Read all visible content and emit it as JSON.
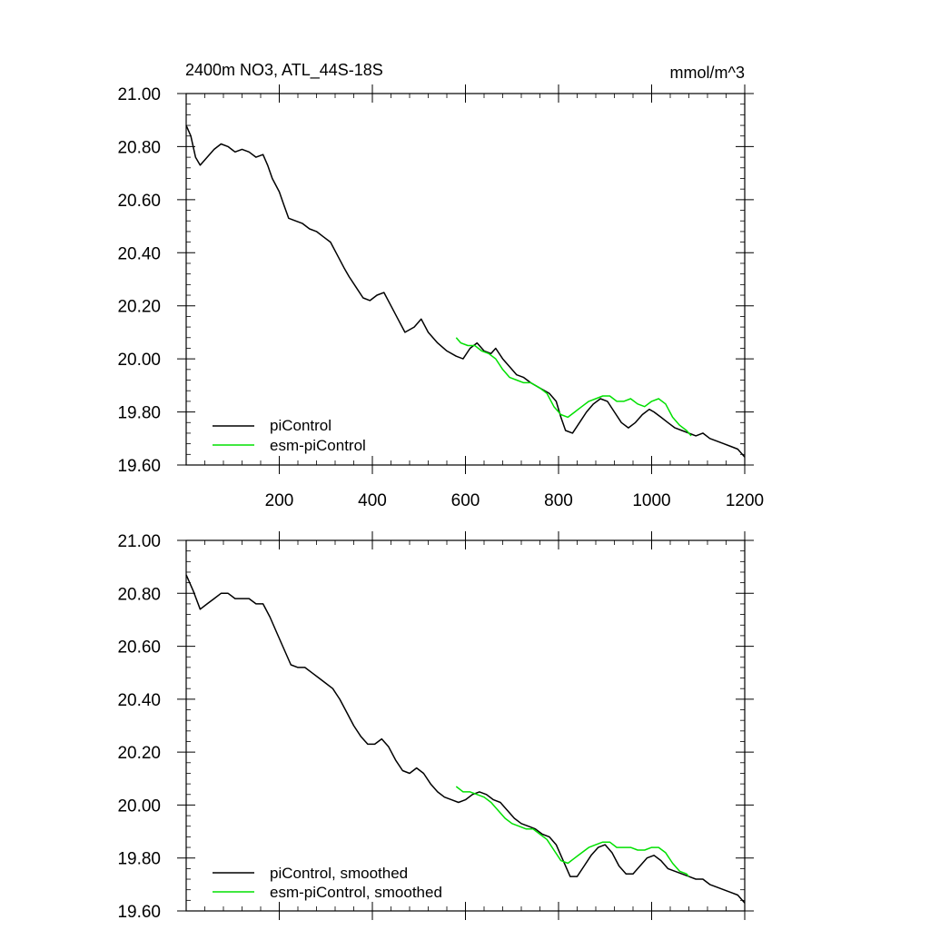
{
  "chart_data": [
    {
      "type": "line",
      "title": "2400m NO3, ATL_44S-18S",
      "units": "mmol/m^3",
      "xlim": [
        0,
        1200
      ],
      "ylim": [
        19.6,
        21.0
      ],
      "x_ticks": [
        200,
        400,
        600,
        800,
        1000,
        1200
      ],
      "x_tick_labels": [
        "200",
        "400",
        "600",
        "800",
        "1000",
        "1200"
      ],
      "y_ticks": [
        19.6,
        19.8,
        20.0,
        20.2,
        20.4,
        20.6,
        20.8,
        21.0
      ],
      "y_tick_labels": [
        "19.60",
        "19.80",
        "20.00",
        "20.20",
        "20.40",
        "20.60",
        "20.80",
        "21.00"
      ],
      "grid": false,
      "legend_position": "bottom-left",
      "series": [
        {
          "name": "piControl",
          "color": "#000000",
          "x": [
            0,
            10,
            20,
            30,
            45,
            60,
            75,
            90,
            105,
            120,
            135,
            150,
            165,
            175,
            185,
            200,
            210,
            220,
            235,
            250,
            265,
            280,
            295,
            310,
            325,
            340,
            350,
            365,
            380,
            395,
            410,
            425,
            440,
            455,
            470,
            490,
            505,
            520,
            540,
            560,
            580,
            595,
            610,
            625,
            640,
            655,
            665,
            680,
            695,
            710,
            725,
            740,
            760,
            780,
            795,
            805,
            815,
            830,
            845,
            860,
            875,
            890,
            905,
            920,
            935,
            950,
            965,
            980,
            995,
            1005,
            1020,
            1035,
            1050,
            1065,
            1080,
            1095,
            1110,
            1125,
            1140,
            1155,
            1170,
            1185,
            1200
          ],
          "y": [
            20.88,
            20.84,
            20.76,
            20.73,
            20.76,
            20.79,
            20.81,
            20.8,
            20.78,
            20.79,
            20.78,
            20.76,
            20.77,
            20.73,
            20.68,
            20.63,
            20.58,
            20.53,
            20.52,
            20.51,
            20.49,
            20.48,
            20.46,
            20.44,
            20.39,
            20.34,
            20.31,
            20.27,
            20.23,
            20.22,
            20.24,
            20.25,
            20.2,
            20.15,
            20.1,
            20.12,
            20.15,
            20.1,
            20.06,
            20.03,
            20.01,
            20.0,
            20.04,
            20.06,
            20.03,
            20.02,
            20.04,
            20.0,
            19.97,
            19.94,
            19.93,
            19.91,
            19.89,
            19.87,
            19.84,
            19.78,
            19.73,
            19.72,
            19.76,
            19.8,
            19.83,
            19.85,
            19.84,
            19.8,
            19.76,
            19.74,
            19.76,
            19.79,
            19.81,
            19.8,
            19.78,
            19.76,
            19.74,
            19.73,
            19.72,
            19.71,
            19.72,
            19.7,
            19.69,
            19.68,
            19.67,
            19.66,
            19.63
          ]
        },
        {
          "name": "esm-piControl",
          "color": "#00e000",
          "x": [
            580,
            590,
            605,
            620,
            635,
            650,
            665,
            680,
            695,
            710,
            725,
            740,
            760,
            775,
            790,
            805,
            820,
            835,
            850,
            865,
            880,
            895,
            910,
            925,
            940,
            955,
            970,
            985,
            1000,
            1015,
            1030,
            1045,
            1060,
            1075,
            1085
          ],
          "y": [
            20.08,
            20.06,
            20.05,
            20.05,
            20.03,
            20.02,
            20.0,
            19.96,
            19.93,
            19.92,
            19.91,
            19.91,
            19.89,
            19.87,
            19.82,
            19.79,
            19.78,
            19.8,
            19.82,
            19.84,
            19.85,
            19.86,
            19.86,
            19.84,
            19.84,
            19.85,
            19.83,
            19.82,
            19.84,
            19.85,
            19.83,
            19.78,
            19.75,
            19.73,
            19.71
          ]
        }
      ]
    },
    {
      "type": "line",
      "xlim": [
        0,
        1200
      ],
      "ylim": [
        19.6,
        21.0
      ],
      "x_ticks": [
        200,
        400,
        600,
        800,
        1000,
        1200
      ],
      "y_ticks": [
        19.6,
        19.8,
        20.0,
        20.2,
        20.4,
        20.6,
        20.8,
        21.0
      ],
      "y_tick_labels": [
        "19.60",
        "19.80",
        "20.00",
        "20.20",
        "20.40",
        "20.60",
        "20.80",
        "21.00"
      ],
      "grid": false,
      "legend_position": "bottom-left",
      "series": [
        {
          "name": "piControl, smoothed",
          "color": "#000000",
          "x": [
            0,
            15,
            30,
            45,
            60,
            75,
            90,
            105,
            120,
            135,
            150,
            165,
            180,
            195,
            210,
            225,
            240,
            255,
            270,
            285,
            300,
            315,
            330,
            345,
            360,
            375,
            390,
            405,
            420,
            435,
            450,
            465,
            480,
            495,
            510,
            525,
            540,
            555,
            570,
            585,
            600,
            615,
            630,
            645,
            660,
            675,
            690,
            705,
            720,
            735,
            750,
            765,
            780,
            795,
            810,
            825,
            840,
            855,
            870,
            885,
            900,
            915,
            930,
            945,
            960,
            975,
            990,
            1005,
            1020,
            1035,
            1050,
            1065,
            1080,
            1095,
            1110,
            1125,
            1140,
            1155,
            1170,
            1185,
            1200
          ],
          "y": [
            20.87,
            20.81,
            20.74,
            20.76,
            20.78,
            20.8,
            20.8,
            20.78,
            20.78,
            20.78,
            20.76,
            20.76,
            20.71,
            20.65,
            20.59,
            20.53,
            20.52,
            20.52,
            20.5,
            20.48,
            20.46,
            20.44,
            20.4,
            20.35,
            20.3,
            20.26,
            20.23,
            20.23,
            20.25,
            20.22,
            20.17,
            20.13,
            20.12,
            20.14,
            20.12,
            20.08,
            20.05,
            20.03,
            20.02,
            20.01,
            20.02,
            20.04,
            20.05,
            20.04,
            20.02,
            20.01,
            19.98,
            19.95,
            19.93,
            19.92,
            19.91,
            19.89,
            19.88,
            19.85,
            19.79,
            19.73,
            19.73,
            19.77,
            19.81,
            19.84,
            19.85,
            19.82,
            19.77,
            19.74,
            19.74,
            19.77,
            19.8,
            19.81,
            19.79,
            19.76,
            19.75,
            19.74,
            19.73,
            19.72,
            19.72,
            19.7,
            19.69,
            19.68,
            19.67,
            19.66,
            19.63
          ]
        },
        {
          "name": "esm-piControl, smoothed",
          "color": "#00e000",
          "x": [
            580,
            595,
            610,
            625,
            640,
            655,
            670,
            685,
            700,
            715,
            730,
            745,
            760,
            775,
            790,
            805,
            820,
            835,
            850,
            865,
            880,
            895,
            910,
            925,
            940,
            955,
            970,
            985,
            1000,
            1015,
            1030,
            1045,
            1060,
            1075,
            1080
          ],
          "y": [
            20.07,
            20.05,
            20.05,
            20.04,
            20.03,
            20.01,
            19.98,
            19.95,
            19.93,
            19.92,
            19.91,
            19.91,
            19.89,
            19.87,
            19.83,
            19.79,
            19.78,
            19.8,
            19.82,
            19.84,
            19.85,
            19.86,
            19.86,
            19.84,
            19.84,
            19.84,
            19.83,
            19.83,
            19.84,
            19.84,
            19.82,
            19.78,
            19.75,
            19.74,
            19.73
          ]
        }
      ]
    }
  ]
}
